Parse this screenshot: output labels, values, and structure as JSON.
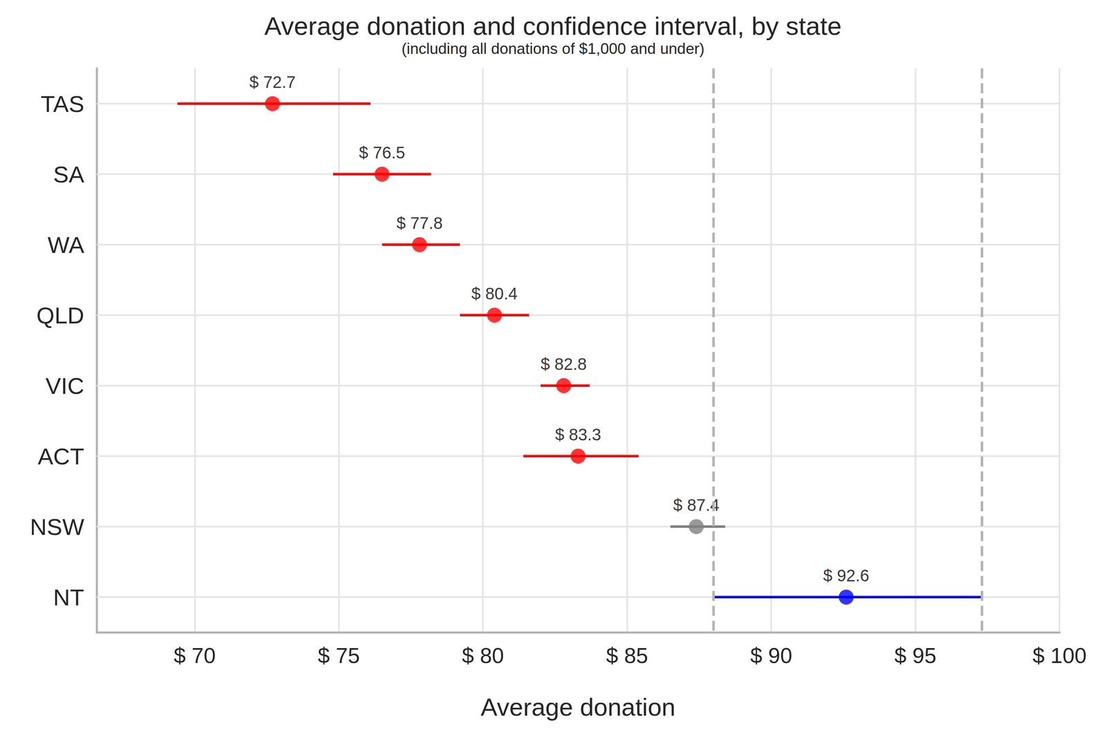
{
  "chart_data": {
    "type": "scatter",
    "orientation": "horizontal",
    "title": "Average donation and confidence interval, by state",
    "subtitle": "(including all donations of $1,000 and under)",
    "x_label": "Average donation",
    "categories": [
      "TAS",
      "SA",
      "WA",
      "QLD",
      "VIC",
      "ACT",
      "NSW",
      "NT"
    ],
    "values": [
      72.7,
      76.5,
      77.8,
      80.4,
      82.8,
      83.3,
      87.4,
      92.6
    ],
    "value_labels": [
      "$ 72.7",
      "$ 76.5",
      "$ 77.8",
      "$ 80.4",
      "$ 82.8",
      "$ 83.3",
      "$ 87.4",
      "$ 92.6"
    ],
    "ci_low": [
      69.4,
      74.8,
      76.5,
      79.2,
      82.0,
      81.4,
      86.5,
      88.0
    ],
    "ci_high": [
      76.1,
      78.2,
      79.2,
      81.6,
      83.7,
      85.4,
      88.4,
      97.3
    ],
    "colors": [
      "#ff0000",
      "#ff0000",
      "#ff0000",
      "#ff0000",
      "#ff0000",
      "#ff0000",
      "#808080",
      "#0000ff"
    ],
    "reference_lines": [
      88.0,
      97.3
    ],
    "xlim": [
      66.6,
      100
    ],
    "xticks": [
      {
        "value": 70,
        "label": "$ 70"
      },
      {
        "value": 75,
        "label": "$ 75"
      },
      {
        "value": 80,
        "label": "$ 80"
      },
      {
        "value": 85,
        "label": "$ 85"
      },
      {
        "value": 90,
        "label": "$ 90"
      },
      {
        "value": 95,
        "label": "$ 95"
      },
      {
        "value": 100,
        "label": "$ 100"
      }
    ],
    "data_labels": true,
    "grid": true
  }
}
